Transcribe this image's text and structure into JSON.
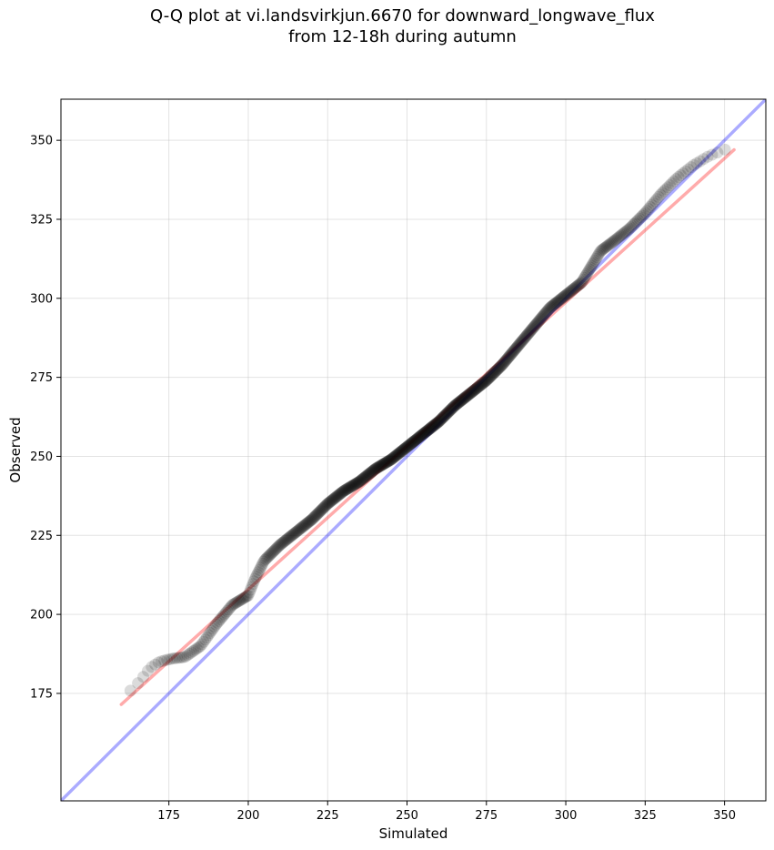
{
  "figure": {
    "title_line1": "Q-Q plot at vi.landsvirkjun.6670 for downward_longwave_flux",
    "title_line2": "from 12-18h during autumn"
  },
  "chart_data": {
    "type": "scatter",
    "title": "Q-Q plot at vi.landsvirkjun.6670 for downward_longwave_flux\nfrom 12-18h during autumn",
    "xlabel": "Simulated",
    "ylabel": "Observed",
    "xlim": [
      141,
      363
    ],
    "ylim": [
      141,
      363
    ],
    "xticks": [
      175,
      200,
      225,
      250,
      275,
      300,
      325,
      350
    ],
    "yticks": [
      175,
      200,
      225,
      250,
      275,
      300,
      325,
      350
    ],
    "grid": true,
    "point_color": "#000000",
    "curve": {
      "x": [
        160,
        163,
        166,
        169,
        172,
        176,
        180,
        185,
        190,
        195,
        200,
        202,
        205,
        210,
        215,
        220,
        225,
        230,
        235,
        240,
        245,
        250,
        255,
        260,
        265,
        270,
        275,
        280,
        285,
        290,
        295,
        300,
        305,
        308,
        311,
        315,
        320,
        325,
        330,
        335,
        340,
        345,
        350,
        353
      ],
      "y": [
        173,
        176,
        179,
        183,
        185,
        186,
        186.5,
        190,
        197,
        203,
        206,
        211,
        217,
        222,
        226,
        230,
        235,
        239,
        242,
        246,
        249,
        253,
        257,
        261,
        266,
        270,
        274,
        279,
        285,
        291,
        297,
        301,
        305,
        310,
        315,
        318,
        322,
        327,
        333,
        338,
        342,
        345,
        347,
        348
      ]
    },
    "series": [
      {
        "name": "",
        "style": "line",
        "color": "#ff0000",
        "x": [
          160,
          353
        ],
        "y": [
          171.5,
          347
        ]
      },
      {
        "name": "",
        "style": "line",
        "color": "#0000ff",
        "x": [
          141,
          363
        ],
        "y": [
          141,
          363
        ]
      }
    ]
  }
}
